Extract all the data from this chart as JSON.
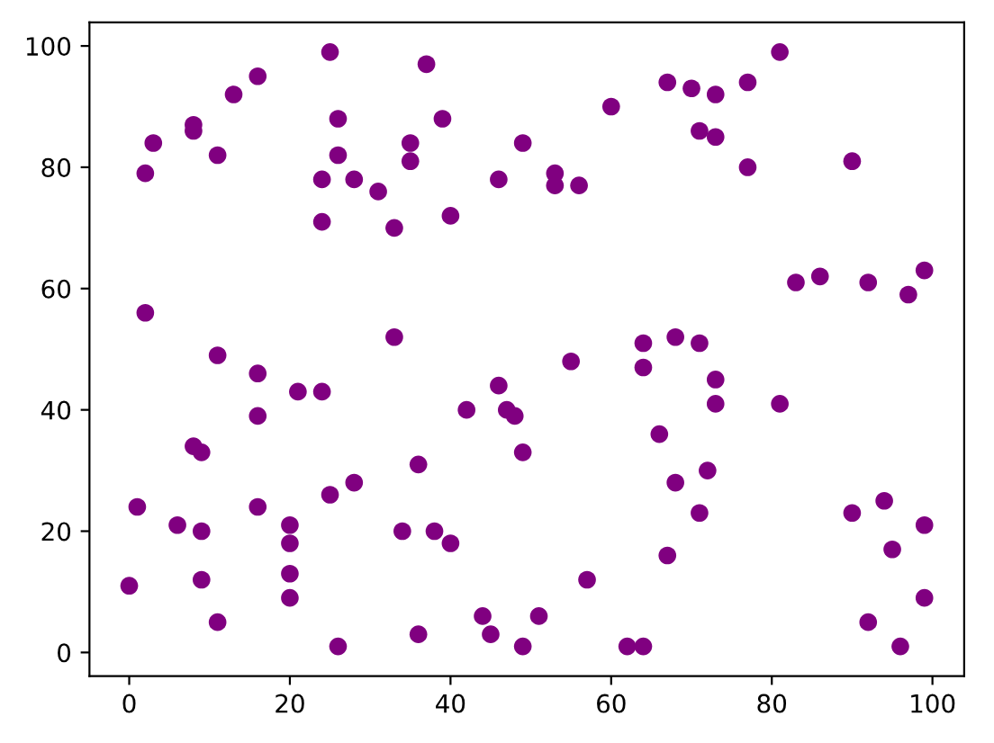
{
  "chart_data": {
    "type": "scatter",
    "x": [
      2,
      3,
      8,
      8,
      11,
      13,
      16,
      24,
      24,
      25,
      26,
      26,
      28,
      31,
      33,
      35,
      35,
      37,
      39,
      40,
      46,
      49,
      53,
      53,
      56,
      60,
      67,
      70,
      71,
      73,
      73,
      77,
      77,
      81,
      83,
      86,
      90,
      92,
      97,
      99,
      2,
      11,
      16,
      16,
      21,
      24,
      33,
      42,
      46,
      47,
      48,
      55,
      64,
      64,
      68,
      71,
      73,
      73,
      81,
      66,
      0,
      1,
      6,
      8,
      9,
      9,
      9,
      11,
      16,
      20,
      20,
      20,
      20,
      25,
      26,
      28,
      34,
      36,
      36,
      38,
      40,
      44,
      45,
      49,
      49,
      51,
      57,
      62,
      64,
      67,
      68,
      71,
      72,
      90,
      92,
      94,
      95,
      96,
      99,
      99
    ],
    "values": [
      79,
      84,
      87,
      86,
      82,
      92,
      95,
      78,
      71,
      99,
      88,
      82,
      78,
      76,
      70,
      84,
      81,
      97,
      88,
      72,
      78,
      84,
      79,
      77,
      77,
      90,
      94,
      93,
      86,
      92,
      85,
      94,
      80,
      99,
      61,
      62,
      81,
      61,
      59,
      63,
      56,
      49,
      46,
      39,
      43,
      43,
      52,
      40,
      44,
      40,
      39,
      48,
      51,
      47,
      52,
      51,
      45,
      41,
      41,
      36,
      11,
      24,
      21,
      34,
      33,
      20,
      12,
      5,
      24,
      21,
      18,
      13,
      9,
      26,
      1,
      28,
      20,
      31,
      3,
      20,
      18,
      6,
      3,
      33,
      1,
      6,
      12,
      1,
      1,
      16,
      28,
      23,
      30,
      23,
      5,
      25,
      17,
      1,
      21,
      9
    ],
    "color": "#800080",
    "marker": "circle",
    "xlim": [
      -4.95,
      103.95
    ],
    "ylim": [
      -3.9,
      103.9
    ],
    "xticks": [
      0,
      20,
      40,
      60,
      80,
      100
    ],
    "yticks": [
      0,
      20,
      40,
      60,
      80,
      100
    ],
    "grid": false
  }
}
